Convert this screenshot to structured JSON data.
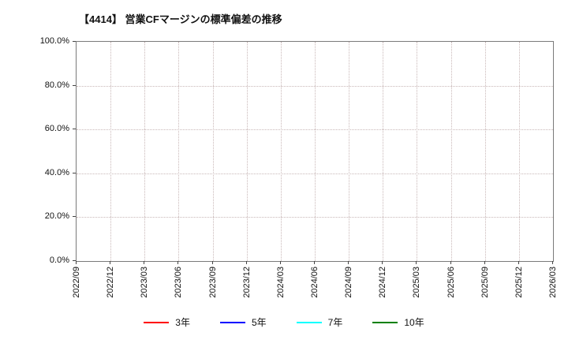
{
  "chart_data": {
    "type": "line",
    "title": "【4414】 営業CFマージンの標準偏差の推移",
    "x_categories": [
      "2022/09",
      "2022/12",
      "2023/03",
      "2023/06",
      "2023/09",
      "2023/12",
      "2024/03",
      "2024/06",
      "2024/09",
      "2024/12",
      "2025/03",
      "2025/06",
      "2025/09",
      "2025/12",
      "2026/03"
    ],
    "y_ticks": [
      "0.0%",
      "20.0%",
      "40.0%",
      "60.0%",
      "80.0%",
      "100.0%"
    ],
    "ylim": [
      0,
      100
    ],
    "grid": true,
    "legend_position": "bottom",
    "series": [
      {
        "name": "3年",
        "color": "#ff0000",
        "values": []
      },
      {
        "name": "5年",
        "color": "#0000ff",
        "values": []
      },
      {
        "name": "7年",
        "color": "#00ffff",
        "values": []
      },
      {
        "name": "10年",
        "color": "#008000",
        "values": []
      }
    ]
  }
}
